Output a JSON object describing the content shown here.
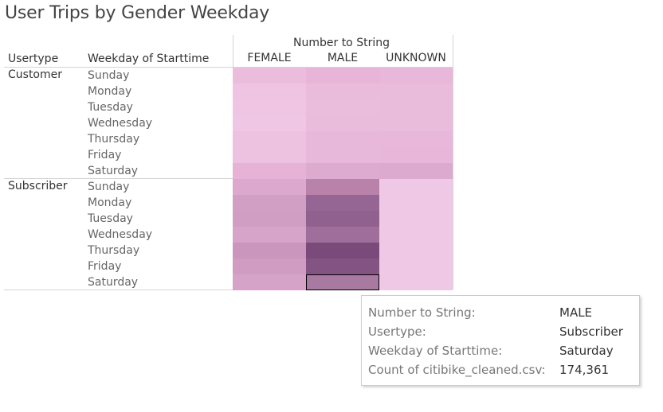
{
  "title": "User Trips by Gender Weekday",
  "headers": {
    "group_title": "Number to String",
    "usertype": "Usertype",
    "weekday": "Weekday of Starttime",
    "columns": [
      "FEMALE",
      "MALE",
      "UNKNOWN"
    ]
  },
  "groups": [
    {
      "usertype": "Customer",
      "days": [
        "Sunday",
        "Monday",
        "Tuesday",
        "Wednesday",
        "Thursday",
        "Friday",
        "Saturday"
      ],
      "colors": [
        [
          "#ecbcdd",
          "#e8b5d8",
          "#e9b7da"
        ],
        [
          "#efc4e2",
          "#eabbdb",
          "#eabcdc"
        ],
        [
          "#efc5e3",
          "#ebbddc",
          "#eabcdc"
        ],
        [
          "#efc6e3",
          "#eabcdc",
          "#eabcdc"
        ],
        [
          "#edc1e0",
          "#e8b8da",
          "#e8b7da"
        ],
        [
          "#edc1e0",
          "#e8b8da",
          "#e8b6d9"
        ],
        [
          "#e6b2d6",
          "#ddabd0",
          "#dcaacf"
        ]
      ]
    },
    {
      "usertype": "Subscriber",
      "days": [
        "Sunday",
        "Monday",
        "Tuesday",
        "Wednesday",
        "Thursday",
        "Friday",
        "Saturday"
      ],
      "colors": [
        [
          "#dba9ce",
          "#b882aa",
          "#efc8e5"
        ],
        [
          "#d19ec4",
          "#956593",
          "#efc8e5"
        ],
        [
          "#d09dc3",
          "#90608f",
          "#efc8e5"
        ],
        [
          "#d6a4c9",
          "#a06e9b",
          "#efc8e5"
        ],
        [
          "#cb96bd",
          "#7a4b7a",
          "#efc8e5"
        ],
        [
          "#d09cc2",
          "#825383",
          "#efc8e5"
        ],
        [
          "#d5a2c8",
          "#a87aa2",
          "#efc8e5"
        ]
      ]
    }
  ],
  "selected_cell": {
    "group": 1,
    "row": 6,
    "col": 1
  },
  "tooltip": {
    "rows": [
      {
        "label": "Number to String:",
        "value": "MALE"
      },
      {
        "label": "Usertype:",
        "value": "Subscriber"
      },
      {
        "label": "Weekday of Starttime:",
        "value": "Saturday"
      },
      {
        "label": "Count of citibike_cleaned.csv:",
        "value": "174,361"
      }
    ]
  }
}
